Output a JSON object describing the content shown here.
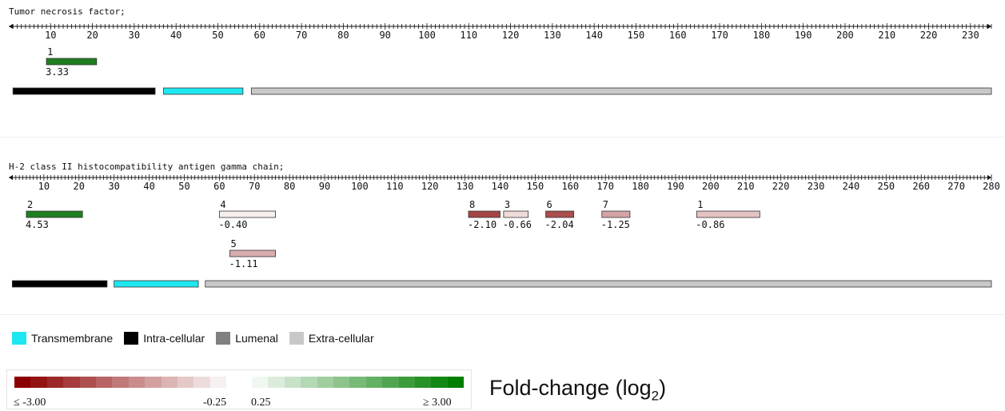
{
  "proteins": [
    {
      "name": "Tumor necrosis factor;",
      "length": 235,
      "tick_labels": [
        "10",
        "20",
        "30",
        "40",
        "50",
        "60",
        "70",
        "80",
        "90",
        "100",
        "110",
        "120",
        "130",
        "140",
        "150",
        "160",
        "170",
        "180",
        "190",
        "200",
        "210",
        "220",
        "230"
      ],
      "peptides": [
        {
          "id": "1",
          "start": 9,
          "end": 21,
          "fold_change": "3.33",
          "log2fc": 3.33,
          "color": "#1f7f1f"
        }
      ],
      "topology": [
        {
          "type": "Intra-cellular",
          "start": 1,
          "end": 35
        },
        {
          "type": "Transmembrane",
          "start": 37,
          "end": 56
        },
        {
          "type": "Extra-cellular",
          "start": 58,
          "end": 235
        }
      ]
    },
    {
      "name": "H-2 class II histocompatibility antigen gamma chain;",
      "length": 280,
      "tick_labels": [
        "10",
        "20",
        "30",
        "40",
        "50",
        "60",
        "70",
        "80",
        "90",
        "100",
        "110",
        "120",
        "130",
        "140",
        "150",
        "160",
        "170",
        "180",
        "190",
        "200",
        "210",
        "220",
        "230",
        "240",
        "250",
        "260",
        "270",
        "280"
      ],
      "peptides": [
        {
          "id": "2",
          "start": 5,
          "end": 21,
          "fold_change": "4.53",
          "log2fc": 4.53,
          "color": "#1f7f1f",
          "row": 0
        },
        {
          "id": "4",
          "start": 60,
          "end": 76,
          "fold_change": "-0.40",
          "log2fc": -0.4,
          "color": "#f7eeee",
          "row": 0
        },
        {
          "id": "8",
          "start": 131,
          "end": 140,
          "fold_change": "-2.10",
          "log2fc": -2.1,
          "color": "#a64545",
          "row": 0
        },
        {
          "id": "3",
          "start": 141,
          "end": 148,
          "fold_change": "-0.66",
          "log2fc": -0.66,
          "color": "#efdada",
          "row": 0
        },
        {
          "id": "6",
          "start": 153,
          "end": 161,
          "fold_change": "-2.04",
          "log2fc": -2.04,
          "color": "#ab4d4d",
          "row": 0
        },
        {
          "id": "7",
          "start": 169,
          "end": 177,
          "fold_change": "-1.25",
          "log2fc": -1.25,
          "color": "#d4a3a3",
          "row": 0
        },
        {
          "id": "1",
          "start": 196,
          "end": 214,
          "fold_change": "-0.86",
          "log2fc": -0.86,
          "color": "#e3c3c3",
          "row": 0
        },
        {
          "id": "5",
          "start": 63,
          "end": 76,
          "fold_change": "-1.11",
          "log2fc": -1.11,
          "color": "#d8acac",
          "row": 1
        }
      ],
      "topology": [
        {
          "type": "Intra-cellular",
          "start": 1,
          "end": 28
        },
        {
          "type": "Transmembrane",
          "start": 30,
          "end": 54
        },
        {
          "type": "Extra-cellular",
          "start": 56,
          "end": 280
        }
      ]
    }
  ],
  "legend": {
    "items": [
      {
        "label": "Transmembrane",
        "color": "#1ee7ef"
      },
      {
        "label": "Intra-cellular",
        "color": "#000000"
      },
      {
        "label": "Lumenal",
        "color": "#808080"
      },
      {
        "label": "Extra-cellular",
        "color": "#c8c8c8"
      }
    ]
  },
  "fold_scale": {
    "title": "Fold-change (log",
    "title_sub": "2",
    "title_close": ")",
    "neg_min_label": "≤ -3.00",
    "neg_max_label": "-0.25",
    "pos_min_label": "0.25",
    "pos_max_label": "≥ 3.00",
    "neg_colors": [
      "#8b0000",
      "#941414",
      "#9d2828",
      "#a63c3c",
      "#af5050",
      "#b86464",
      "#c17878",
      "#ca8c8c",
      "#d3a0a0",
      "#dcb4b4",
      "#e5c8c8",
      "#eedcdc",
      "#f7f0f0"
    ],
    "pos_colors": [
      "#f0f7f0",
      "#dcecdc",
      "#c8e2c8",
      "#b4d8b4",
      "#a0cea0",
      "#8cc48c",
      "#78ba78",
      "#64b064",
      "#50a650",
      "#3c9c3c",
      "#289228",
      "#148814",
      "#007e00"
    ]
  }
}
